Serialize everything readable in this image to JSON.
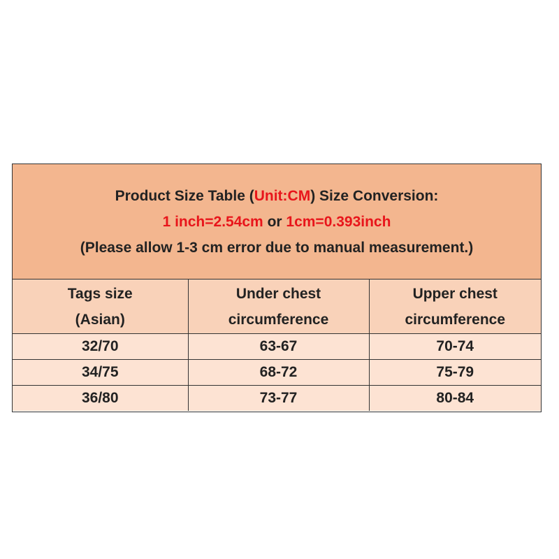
{
  "header": {
    "lines": [
      [
        {
          "text": "Product Size Table ("
        },
        {
          "text": "Unit:CM",
          "color": "#e8151b"
        },
        {
          "text": ") Size Conversion:"
        }
      ],
      [
        {
          "text": "1 inch=2.54cm",
          "color": "#e8151b"
        },
        {
          "text": " or "
        },
        {
          "text": "1cm=0.393inch",
          "color": "#e8151b"
        }
      ],
      [
        {
          "text": "(Please allow 1-3 cm error due to manual measurement.)"
        }
      ]
    ]
  },
  "table": {
    "columns": [
      [
        "Tags size",
        "(Asian)"
      ],
      [
        "Under chest",
        "circumference"
      ],
      [
        "Upper chest",
        "circumference"
      ]
    ],
    "rows": [
      [
        "32/70",
        "63-67",
        "70-74"
      ],
      [
        "34/75",
        "68-72",
        "75-79"
      ],
      [
        "36/80",
        "73-77",
        "80-84"
      ]
    ]
  }
}
